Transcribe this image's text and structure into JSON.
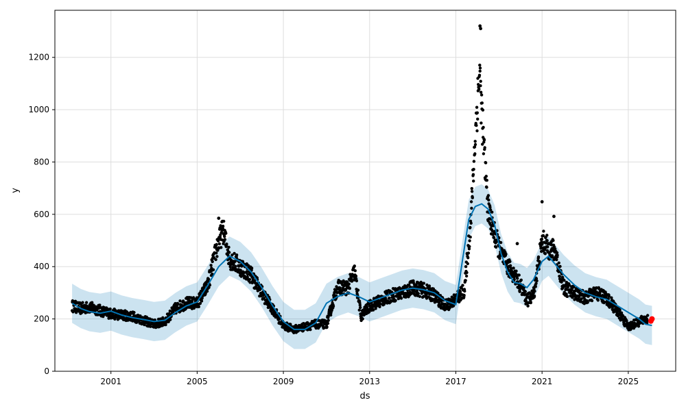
{
  "chart_data": {
    "type": "scatter",
    "title": "",
    "xlabel": "ds",
    "ylabel": "y",
    "xlim": [
      1998.4,
      2027.2
    ],
    "ylim": [
      0,
      1380
    ],
    "x_ticks": [
      2001,
      2005,
      2009,
      2013,
      2017,
      2021,
      2025
    ],
    "x_tick_labels": [
      "2001",
      "2005",
      "2009",
      "2013",
      "2017",
      "2021",
      "2025"
    ],
    "y_ticks": [
      0,
      200,
      400,
      600,
      800,
      1000,
      1200
    ],
    "y_tick_labels": [
      "0",
      "200",
      "400",
      "600",
      "800",
      "1000",
      "1200"
    ],
    "grid": true,
    "colors": {
      "observed": "#000000",
      "forecast_line": "#0072B2",
      "uncertainty_band": "#0072B2",
      "highlight": "#ff0000"
    },
    "forecast": {
      "x": [
        1999.2,
        1999.6,
        2000.0,
        2000.5,
        2001.0,
        2001.5,
        2002.0,
        2002.5,
        2003.0,
        2003.5,
        2004.0,
        2004.5,
        2005.0,
        2005.5,
        2006.0,
        2006.5,
        2007.0,
        2007.5,
        2008.0,
        2008.5,
        2009.0,
        2009.5,
        2010.0,
        2010.5,
        2011.0,
        2011.5,
        2012.0,
        2012.5,
        2013.0,
        2013.5,
        2014.0,
        2014.5,
        2015.0,
        2015.5,
        2016.0,
        2016.5,
        2017.0,
        2017.3,
        2017.6,
        2017.9,
        2018.2,
        2018.5,
        2018.8,
        2019.1,
        2019.4,
        2019.7,
        2020.0,
        2020.3,
        2020.6,
        2021.0,
        2021.3,
        2021.6,
        2022.0,
        2022.5,
        2023.0,
        2023.5,
        2024.0,
        2024.5,
        2025.0,
        2025.5,
        2025.8,
        2026.1
      ],
      "yhat": [
        260,
        240,
        228,
        222,
        230,
        215,
        205,
        198,
        190,
        195,
        225,
        250,
        265,
        330,
        400,
        440,
        420,
        380,
        320,
        250,
        190,
        160,
        160,
        185,
        260,
        285,
        300,
        285,
        265,
        280,
        295,
        310,
        318,
        312,
        300,
        270,
        255,
        420,
        580,
        630,
        640,
        620,
        560,
        450,
        380,
        340,
        335,
        320,
        350,
        420,
        440,
        410,
        370,
        330,
        300,
        285,
        275,
        250,
        225,
        200,
        180,
        175
      ],
      "band_half_width": 75
    },
    "observed_trend": {
      "x": [
        1999.2,
        1999.6,
        2000.0,
        2000.5,
        2001.0,
        2001.5,
        2002.0,
        2002.5,
        2003.0,
        2003.5,
        2004.0,
        2004.5,
        2005.0,
        2005.5,
        2005.9,
        2006.2,
        2006.5,
        2007.0,
        2007.5,
        2008.0,
        2008.5,
        2009.0,
        2009.5,
        2010.0,
        2010.5,
        2011.0,
        2011.5,
        2012.0,
        2012.3,
        2012.6,
        2013.0,
        2013.5,
        2014.0,
        2014.5,
        2015.0,
        2015.5,
        2016.0,
        2016.5,
        2017.0,
        2017.4,
        2017.7,
        2017.9,
        2018.1,
        2018.3,
        2018.5,
        2018.8,
        2019.1,
        2019.4,
        2019.7,
        2020.0,
        2020.3,
        2020.6,
        2021.0,
        2021.3,
        2021.6,
        2022.0,
        2022.5,
        2023.0,
        2023.5,
        2024.0,
        2024.5,
        2025.0,
        2025.5,
        2025.9
      ],
      "y": [
        250,
        240,
        245,
        232,
        220,
        215,
        210,
        195,
        180,
        190,
        240,
        260,
        260,
        330,
        470,
        540,
        430,
        400,
        370,
        300,
        240,
        175,
        160,
        170,
        180,
        180,
        320,
        320,
        380,
        210,
        250,
        270,
        290,
        300,
        320,
        310,
        290,
        250,
        275,
        310,
        580,
        900,
        1150,
        850,
        620,
        520,
        450,
        400,
        370,
        330,
        270,
        290,
        500,
        470,
        460,
        320,
        300,
        280,
        300,
        280,
        230,
        170,
        190,
        200
      ]
    },
    "outlier_points": [
      {
        "x": 2018.12,
        "y": 1320
      },
      {
        "x": 2018.15,
        "y": 1310
      },
      {
        "x": 2021.0,
        "y": 648
      },
      {
        "x": 2021.55,
        "y": 592
      },
      {
        "x": 2006.0,
        "y": 585
      },
      {
        "x": 2019.85,
        "y": 488
      }
    ],
    "highlight_points": [
      {
        "x": 2026.05,
        "y": 192
      },
      {
        "x": 2026.1,
        "y": 200
      }
    ]
  }
}
